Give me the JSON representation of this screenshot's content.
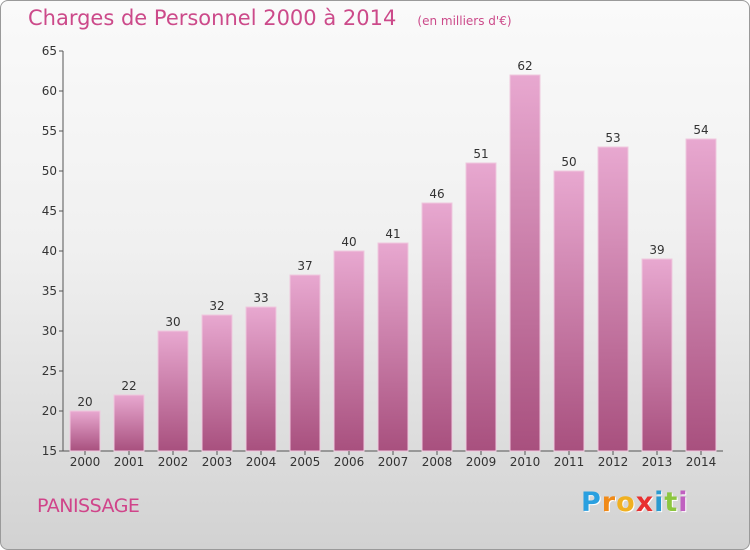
{
  "title": "Charges de Personnel 2000 à 2014",
  "subtitle": "(en milliers d'€)",
  "commune": "PANISSAGE",
  "brand": {
    "letters": [
      "P",
      "r",
      "o",
      "x",
      "i",
      "t",
      "i"
    ],
    "colors": [
      "#2aa0e0",
      "#f08a18",
      "#f0b020",
      "#e83030",
      "#2a9ad0",
      "#8cc63f",
      "#c060c0"
    ]
  },
  "colors": {
    "title": "#cc4a8a",
    "bar_top": "#e8a8d0",
    "bar_bottom": "#a8507e"
  },
  "chart_data": {
    "type": "bar",
    "categories": [
      "2000",
      "2001",
      "2002",
      "2003",
      "2004",
      "2005",
      "2006",
      "2007",
      "2008",
      "2009",
      "2010",
      "2011",
      "2012",
      "2013",
      "2014"
    ],
    "values": [
      20,
      22,
      30,
      32,
      33,
      37,
      40,
      41,
      46,
      51,
      62,
      50,
      53,
      39,
      54
    ],
    "ylim": [
      15,
      65
    ],
    "yticks": [
      15,
      20,
      25,
      30,
      35,
      40,
      45,
      50,
      55,
      60,
      65
    ],
    "grid": false,
    "xlabel": "",
    "ylabel": ""
  }
}
